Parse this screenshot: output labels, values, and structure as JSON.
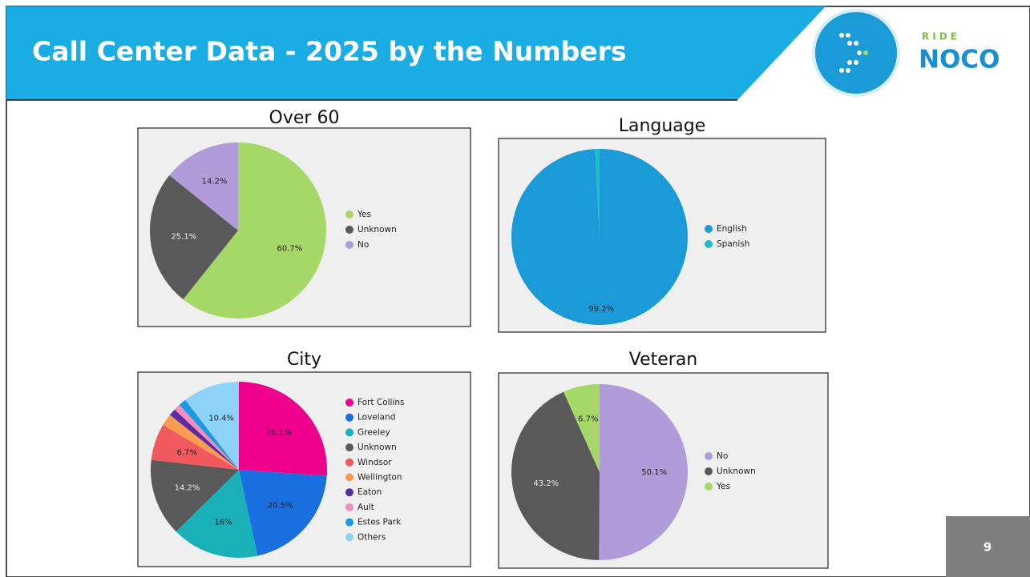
{
  "header": {
    "title": "Call Center Data - 2025 by the Numbers",
    "logo_top": "RIDE",
    "logo_main": "NOCO"
  },
  "page_number": "9",
  "chart_data": [
    {
      "type": "pie",
      "title": "Over 60",
      "categories": [
        "Yes",
        "Unknown",
        "No"
      ],
      "values": [
        60.7,
        25.1,
        14.2
      ],
      "value_labels": [
        "60.7%",
        "25.1%",
        "14.2%"
      ],
      "colors": [
        "#a6d867",
        "#595959",
        "#b19cd9"
      ]
    },
    {
      "type": "pie",
      "title": "Language",
      "categories": [
        "English",
        "Spanish"
      ],
      "values": [
        99.2,
        0.8
      ],
      "value_labels": [
        "99.2%",
        null
      ],
      "colors": [
        "#1a9ad6",
        "#1ec0c8"
      ]
    },
    {
      "type": "pie",
      "title": "City",
      "categories": [
        "Fort Collins",
        "Loveland",
        "Greeley",
        "Unknown",
        "Windsor",
        "Wellington",
        "Eaton",
        "Ault",
        "Estes Park",
        "Others"
      ],
      "values": [
        26.1,
        20.5,
        16,
        14.2,
        6.7,
        2.2,
        1.3,
        1.2,
        1.4,
        10.4
      ],
      "value_labels": [
        "26.1%",
        "20.5%",
        "16%",
        "14.2%",
        "6.7%",
        null,
        null,
        null,
        null,
        "10.4%"
      ],
      "colors": [
        "#ec008c",
        "#1a6fe0",
        "#1ab0b8",
        "#595959",
        "#f0595e",
        "#f99c50",
        "#5b2c9f",
        "#f38fbf",
        "#1a9ae0",
        "#8dd3f7"
      ]
    },
    {
      "type": "pie",
      "title": "Veteran",
      "categories": [
        "No",
        "Unknown",
        "Yes"
      ],
      "values": [
        50.1,
        43.2,
        6.7
      ],
      "value_labels": [
        "50.1%",
        "43.2%",
        "6.7%"
      ],
      "colors": [
        "#b19cd9",
        "#595959",
        "#a6d867"
      ]
    }
  ]
}
